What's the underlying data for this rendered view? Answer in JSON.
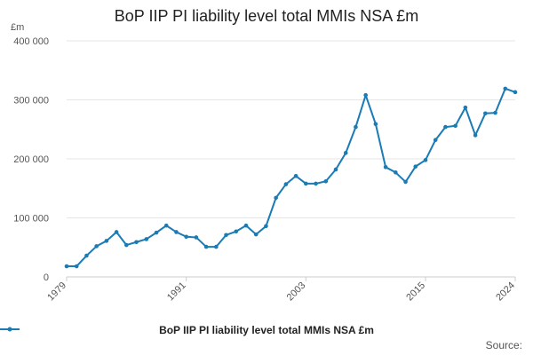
{
  "chart_data": {
    "type": "line",
    "title": "BoP IIP PI liability level total MMIs NSA £m",
    "ylabel": "£m",
    "xlabel": "",
    "ylim": [
      0,
      400000
    ],
    "xlim": [
      1979,
      2024
    ],
    "yticks": [
      0,
      100000,
      200000,
      300000,
      400000
    ],
    "ytick_labels": [
      "0",
      "100 000",
      "200 000",
      "300 000",
      "400 000"
    ],
    "xticks": [
      1979,
      1991,
      2003,
      2015,
      2024
    ],
    "xtick_labels": [
      "1979",
      "1991",
      "2003",
      "2015",
      "2024"
    ],
    "grid": true,
    "legend_position": "bottom",
    "source_label": "Source:",
    "colors": {
      "series": "#1a7bb5",
      "grid": "#e6e6e6",
      "axis": "#cccccc"
    },
    "series": [
      {
        "name": "BoP IIP PI liability level total MMIs NSA £m",
        "x": [
          1979,
          1980,
          1981,
          1982,
          1983,
          1984,
          1985,
          1986,
          1987,
          1988,
          1989,
          1990,
          1991,
          1992,
          1993,
          1994,
          1995,
          1996,
          1997,
          1998,
          1999,
          2000,
          2001,
          2002,
          2003,
          2004,
          2005,
          2006,
          2007,
          2008,
          2009,
          2010,
          2011,
          2012,
          2013,
          2014,
          2015,
          2016,
          2017,
          2018,
          2019,
          2020,
          2021,
          2022,
          2023,
          2024
        ],
        "values": [
          18000,
          18000,
          36000,
          52000,
          61000,
          76000,
          54000,
          59000,
          64000,
          75000,
          87000,
          76000,
          68000,
          67000,
          51000,
          51000,
          71000,
          77000,
          87000,
          72000,
          86000,
          134000,
          157000,
          171000,
          158000,
          158000,
          162000,
          182000,
          210000,
          254000,
          308000,
          259000,
          186000,
          177000,
          161000,
          187000,
          198000,
          232000,
          254000,
          256000,
          287000,
          240000,
          277000,
          278000,
          319000,
          313000
        ]
      }
    ]
  }
}
